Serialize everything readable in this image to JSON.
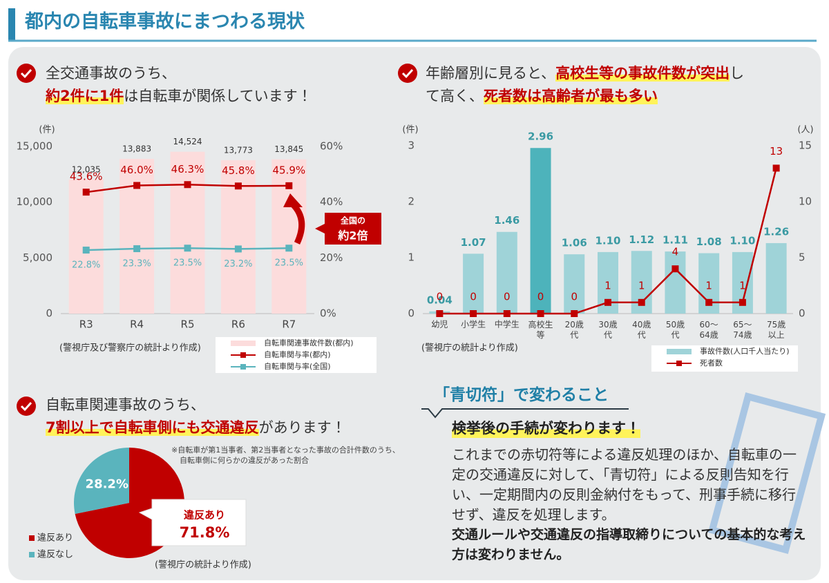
{
  "header": {
    "title": "都内の自転車事故にまつわる現状"
  },
  "headings": [
    [
      "全交通事故のうち、",
      "約2件に1件",
      "は自転車が関係しています！"
    ],
    [
      "年齢層別に見ると、",
      "高校生等の事故件数が突出",
      "し",
      "て高く、",
      "死者数は高齢者が最も多い"
    ],
    [
      "自転車関連事故のうち、",
      "7割以上で自転車側にも交通違反",
      "があります！"
    ]
  ],
  "chart_data": [
    {
      "type": "bar-line",
      "y_label": "(件)",
      "categories": [
        "R3",
        "R4",
        "R5",
        "R6",
        "R7"
      ],
      "series": [
        {
          "name": "自転車関連事故件数(都内)",
          "type": "bar",
          "color": "#fcdcdc",
          "values": [
            12035,
            13883,
            14524,
            13773,
            13845
          ],
          "value_labels": [
            "12,035",
            "13,883",
            "14,524",
            "13,773",
            "13,845"
          ]
        },
        {
          "name": "自転車関与率(都内)",
          "type": "line",
          "axis": "y2",
          "color": "#c00000",
          "values": [
            43.6,
            46.0,
            46.3,
            45.8,
            45.9
          ],
          "value_labels": [
            "43.6%",
            "46.0%",
            "46.3%",
            "45.8%",
            "45.9%"
          ]
        },
        {
          "name": "自転車関与率(全国)",
          "type": "line",
          "axis": "y2",
          "color": "#5ab4bd",
          "values": [
            22.8,
            23.3,
            23.5,
            23.2,
            23.5
          ],
          "value_labels": [
            "22.8%",
            "23.3%",
            "23.5%",
            "23.2%",
            "23.5%"
          ]
        }
      ],
      "ylim": [
        0,
        15000
      ],
      "yticks": [
        0,
        {
          "value": 5000,
          "label": "5,000"
        },
        {
          "value": 10000,
          "label": "10,000"
        },
        {
          "value": 15000,
          "label": "15,000"
        }
      ],
      "y2lim": [
        0,
        60
      ],
      "y2ticks": [
        {
          "value": 0,
          "label": "0%"
        },
        {
          "value": 20,
          "label": "20%"
        },
        {
          "value": 40,
          "label": "40%"
        },
        {
          "value": 60,
          "label": "60%"
        }
      ],
      "annotation": [
        "全国の",
        "約2倍"
      ],
      "source": "(警視庁及び警察庁の統計より作成)"
    },
    {
      "type": "bar-line",
      "y_label": "(件)",
      "y2_label": "(人)",
      "categories": [
        "幼児",
        "小学生",
        "中学生",
        "高校生等",
        "20歳代",
        "30歳代",
        "40歳代",
        "50歳代",
        "60～64歳",
        "65～74歳",
        "75歳以上"
      ],
      "series": [
        {
          "name": "事故件数(人口千人当たり)",
          "type": "bar",
          "color": "#9fd3d8",
          "colors": [
            "#9fd3d8",
            "#9fd3d8",
            "#9fd3d8",
            "#4db3bb",
            "#9fd3d8",
            "#9fd3d8",
            "#9fd3d8",
            "#9fd3d8",
            "#9fd3d8",
            "#9fd3d8",
            "#9fd3d8"
          ],
          "values": [
            0.04,
            1.07,
            1.46,
            2.96,
            1.06,
            1.1,
            1.12,
            1.11,
            1.08,
            1.1,
            1.26
          ],
          "value_labels": [
            "0.04",
            "1.07",
            "1.46",
            "2.96",
            "1.06",
            "1.10",
            "1.12",
            "1.11",
            "1.08",
            "1.10",
            "1.26"
          ]
        },
        {
          "name": "死者数",
          "type": "line",
          "axis": "y2",
          "color": "#c00000",
          "values": [
            0,
            0,
            0,
            0,
            0,
            1,
            1,
            4,
            1,
            1,
            13
          ]
        }
      ],
      "ylim": [
        0,
        3
      ],
      "yticks": [
        0,
        1,
        2,
        3
      ],
      "y2lim": [
        0,
        15
      ],
      "y2ticks": [
        0,
        5,
        10,
        15
      ],
      "source": "(警視庁の統計より作成)"
    },
    {
      "type": "pie",
      "categories": [
        "違反あり",
        "違反なし"
      ],
      "values": [
        71.8,
        28.2
      ],
      "value_labels": [
        "71.8%",
        "28.2%"
      ],
      "colors": [
        "#c00000",
        "#5ab4bd"
      ],
      "note": [
        "※自転車が第1当事者、第2当事者となった事故の合計件数のうち、",
        "自転車側に何らかの違反があった割合"
      ],
      "source": "(警視庁の統計より作成)"
    }
  ],
  "blue_ticket": {
    "title": "「青切符」で変わること",
    "subtitle": "検挙後の手続が変わります！",
    "body": "これまでの赤切符等による違反処理のほか、自転車の一定の交通違反に対して、「青切符」による反則告知を行い、一定期間内の反則金納付をもって、刑事手続に移行せず、違反を処理します。",
    "note": "交通ルールや交通違反の指導取締りについての基本的な考え方は変わりません。"
  }
}
